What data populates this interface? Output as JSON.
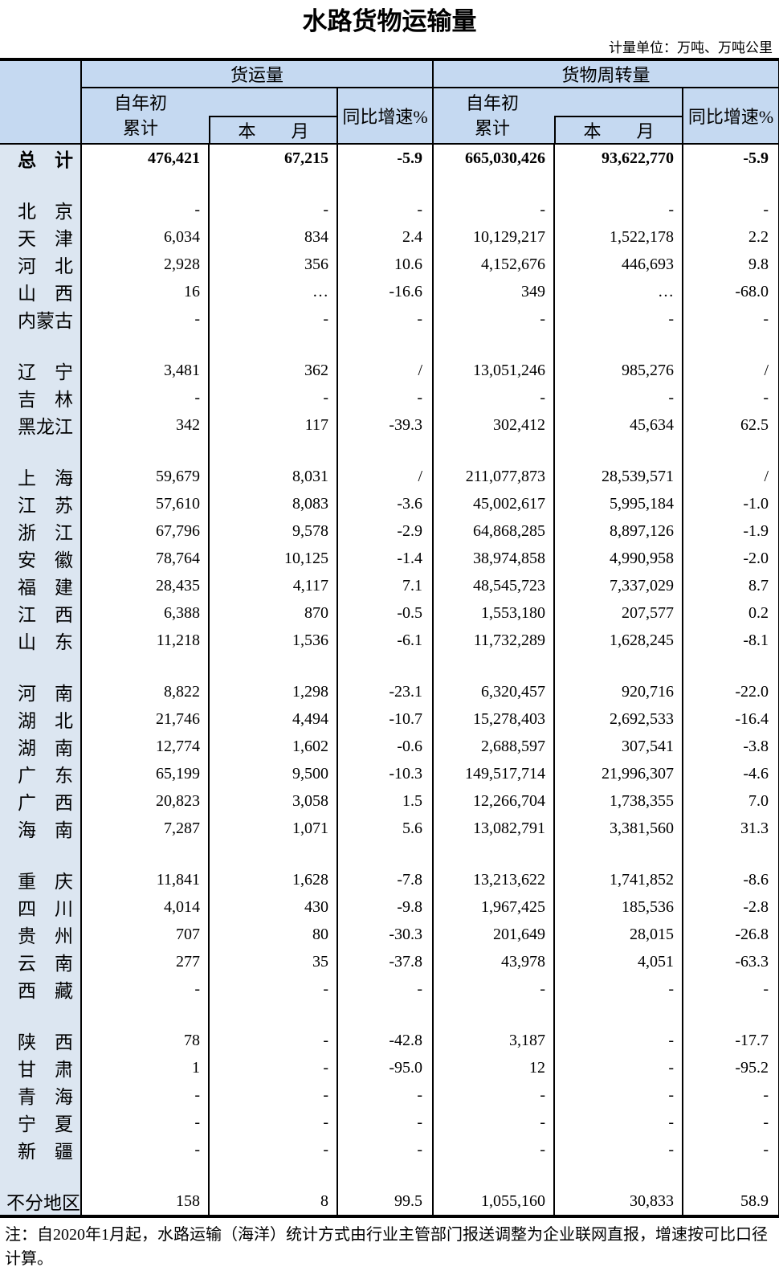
{
  "title": "水路货物运输量",
  "unit_note": "计量单位：万吨、万吨公里",
  "footnote": "注：自2020年1月起，水路运输（海洋）统计方式由行业主管部门报送调整为企业联网直报，增速按可比口径计算。",
  "table": {
    "group_headers": [
      "货运量",
      "货物周转量"
    ],
    "sub_headers": {
      "cumulative_line1": "自年初",
      "cumulative_line2": "累计",
      "month": "本　　月",
      "yoy": "同比增速%"
    },
    "rows": [
      {
        "region": "总　计",
        "bold": true,
        "cells": [
          "476,421",
          "67,215",
          "-5.9",
          "665,030,426",
          "93,622,770",
          "-5.9"
        ]
      },
      {
        "blank": true
      },
      {
        "region": "北　京",
        "cells": [
          "-",
          "-",
          "-",
          "-",
          "-",
          "-"
        ]
      },
      {
        "region": "天　津",
        "cells": [
          "6,034",
          "834",
          "2.4",
          "10,129,217",
          "1,522,178",
          "2.2"
        ]
      },
      {
        "region": "河　北",
        "cells": [
          "2,928",
          "356",
          "10.6",
          "4,152,676",
          "446,693",
          "9.8"
        ]
      },
      {
        "region": "山　西",
        "cells": [
          "16",
          "…",
          "-16.6",
          "349",
          "…",
          "-68.0"
        ]
      },
      {
        "region": "内蒙古",
        "cells": [
          "-",
          "-",
          "-",
          "-",
          "-",
          "-"
        ]
      },
      {
        "blank": true
      },
      {
        "region": "辽　宁",
        "cells": [
          "3,481",
          "362",
          "/",
          "13,051,246",
          "985,276",
          "/"
        ]
      },
      {
        "region": "吉　林",
        "cells": [
          "-",
          "-",
          "-",
          "-",
          "-",
          "-"
        ]
      },
      {
        "region": "黑龙江",
        "cells": [
          "342",
          "117",
          "-39.3",
          "302,412",
          "45,634",
          "62.5"
        ]
      },
      {
        "blank": true
      },
      {
        "region": "上　海",
        "cells": [
          "59,679",
          "8,031",
          "/",
          "211,077,873",
          "28,539,571",
          "/"
        ]
      },
      {
        "region": "江　苏",
        "cells": [
          "57,610",
          "8,083",
          "-3.6",
          "45,002,617",
          "5,995,184",
          "-1.0"
        ]
      },
      {
        "region": "浙　江",
        "cells": [
          "67,796",
          "9,578",
          "-2.9",
          "64,868,285",
          "8,897,126",
          "-1.9"
        ]
      },
      {
        "region": "安　徽",
        "cells": [
          "78,764",
          "10,125",
          "-1.4",
          "38,974,858",
          "4,990,958",
          "-2.0"
        ]
      },
      {
        "region": "福　建",
        "cells": [
          "28,435",
          "4,117",
          "7.1",
          "48,545,723",
          "7,337,029",
          "8.7"
        ]
      },
      {
        "region": "江　西",
        "cells": [
          "6,388",
          "870",
          "-0.5",
          "1,553,180",
          "207,577",
          "0.2"
        ]
      },
      {
        "region": "山　东",
        "cells": [
          "11,218",
          "1,536",
          "-6.1",
          "11,732,289",
          "1,628,245",
          "-8.1"
        ]
      },
      {
        "blank": true
      },
      {
        "region": "河　南",
        "cells": [
          "8,822",
          "1,298",
          "-23.1",
          "6,320,457",
          "920,716",
          "-22.0"
        ]
      },
      {
        "region": "湖　北",
        "cells": [
          "21,746",
          "4,494",
          "-10.7",
          "15,278,403",
          "2,692,533",
          "-16.4"
        ]
      },
      {
        "region": "湖　南",
        "cells": [
          "12,774",
          "1,602",
          "-0.6",
          "2,688,597",
          "307,541",
          "-3.8"
        ]
      },
      {
        "region": "广　东",
        "cells": [
          "65,199",
          "9,500",
          "-10.3",
          "149,517,714",
          "21,996,307",
          "-4.6"
        ]
      },
      {
        "region": "广　西",
        "cells": [
          "20,823",
          "3,058",
          "1.5",
          "12,266,704",
          "1,738,355",
          "7.0"
        ]
      },
      {
        "region": "海　南",
        "cells": [
          "7,287",
          "1,071",
          "5.6",
          "13,082,791",
          "3,381,560",
          "31.3"
        ]
      },
      {
        "blank": true
      },
      {
        "region": "重　庆",
        "cells": [
          "11,841",
          "1,628",
          "-7.8",
          "13,213,622",
          "1,741,852",
          "-8.6"
        ]
      },
      {
        "region": "四　川",
        "cells": [
          "4,014",
          "430",
          "-9.8",
          "1,967,425",
          "185,536",
          "-2.8"
        ]
      },
      {
        "region": "贵　州",
        "cells": [
          "707",
          "80",
          "-30.3",
          "201,649",
          "28,015",
          "-26.8"
        ]
      },
      {
        "region": "云　南",
        "cells": [
          "277",
          "35",
          "-37.8",
          "43,978",
          "4,051",
          "-63.3"
        ]
      },
      {
        "region": "西　藏",
        "cells": [
          "-",
          "-",
          "-",
          "-",
          "-",
          "-"
        ]
      },
      {
        "blank": true
      },
      {
        "region": "陕　西",
        "cells": [
          "78",
          "-",
          "-42.8",
          "3,187",
          "-",
          "-17.7"
        ]
      },
      {
        "region": "甘　肃",
        "cells": [
          "1",
          "-",
          "-95.0",
          "12",
          "-",
          "-95.2"
        ]
      },
      {
        "region": "青　海",
        "cells": [
          "-",
          "-",
          "-",
          "-",
          "-",
          "-"
        ]
      },
      {
        "region": "宁　夏",
        "cells": [
          "-",
          "-",
          "-",
          "-",
          "-",
          "-"
        ]
      },
      {
        "region": "新　疆",
        "cells": [
          "-",
          "-",
          "-",
          "-",
          "-",
          "-"
        ]
      },
      {
        "blank": true
      },
      {
        "region": "不分地区",
        "cells": [
          "158",
          "8",
          "99.5",
          "1,055,160",
          "30,833",
          "58.9"
        ]
      }
    ]
  }
}
